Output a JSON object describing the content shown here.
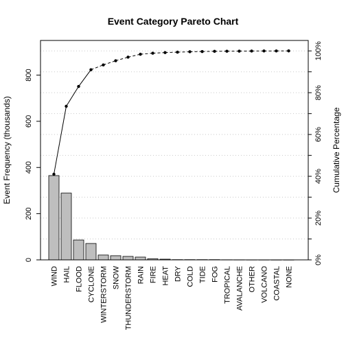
{
  "chart_data": {
    "type": "bar",
    "title": "Event Category Pareto Chart",
    "xlabel": "",
    "ylabel": "Event Frequency (thousands)",
    "y2label": "Cumulative Percentage",
    "ylim": [
      0,
      950
    ],
    "y2lim": [
      0,
      105
    ],
    "yticks": [
      0,
      200,
      400,
      600,
      800
    ],
    "ytick_labels": [
      "0",
      "200",
      "400",
      "600",
      "800"
    ],
    "y2ticks": [
      0,
      20,
      40,
      60,
      80,
      100
    ],
    "y2tick_labels": [
      "0%",
      "20%",
      "40%",
      "60%",
      "80%",
      "100%"
    ],
    "grid": "horizontal-dotted",
    "categories": [
      "WIND",
      "HAIL",
      "FLOOD",
      "CYCLONE",
      "WINTERSTORM",
      "SNOW",
      "THUNDERSTORM",
      "RAIN",
      "FIRE",
      "HEAT",
      "DRY",
      "COLD",
      "TIDE",
      "FOG",
      "TROPICAL",
      "AVALANCHE",
      "OTHER",
      "VOLCANO",
      "COASTAL",
      "NONE"
    ],
    "values": [
      365,
      289,
      86,
      71,
      21,
      18,
      15,
      12,
      5,
      3,
      1,
      1,
      1,
      1,
      0.5,
      0.4,
      0.3,
      0.2,
      0.1,
      0.1
    ],
    "cumulative_percent": [
      41,
      73.5,
      83,
      91,
      93.3,
      95.3,
      97,
      98.4,
      98.9,
      99.2,
      99.4,
      99.6,
      99.7,
      99.8,
      99.85,
      99.9,
      99.93,
      99.96,
      99.98,
      100
    ],
    "colors": {
      "bar_fill": "#bebebe",
      "bar_stroke": "#000000",
      "grid": "#c8c8c8"
    }
  }
}
